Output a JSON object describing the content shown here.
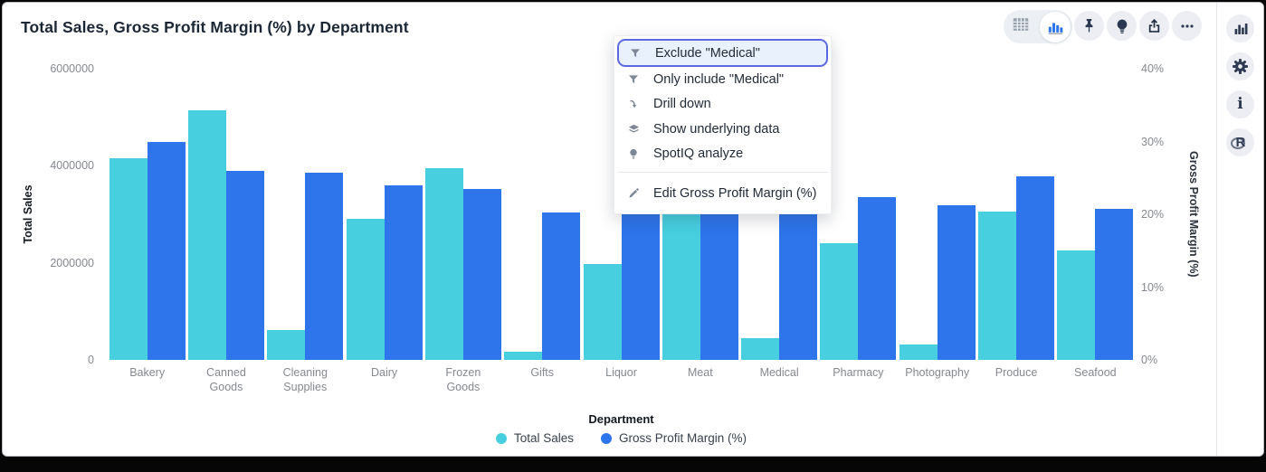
{
  "window": {
    "title": "Total Sales, Gross Profit Margin (%) by Department"
  },
  "toolbar": {
    "view_toggle": {
      "options": [
        "table-view",
        "chart-view"
      ],
      "selected": "chart-view"
    },
    "buttons": [
      "pin-icon",
      "spotiq-bulb-icon",
      "share-icon",
      "more-icon"
    ]
  },
  "rail": {
    "buttons": [
      "chart-panel-icon",
      "settings-gear-icon",
      "info-icon",
      "r-analysis-icon"
    ]
  },
  "icons": {
    "info_glyph": "i",
    "r_glyph": "R"
  },
  "context_menu": {
    "items": [
      {
        "icon": "filter-icon",
        "label": "Exclude \"Medical\"",
        "state": "focused"
      },
      {
        "icon": "filter-icon",
        "label": "Only include \"Medical\""
      },
      {
        "icon": "drill-down-icon",
        "label": "Drill down"
      },
      {
        "icon": "layers-icon",
        "label": "Show underlying data"
      },
      {
        "icon": "bulb-icon",
        "label": "SpotIQ analyze"
      },
      {
        "icon": "pencil-icon",
        "label": "Edit Gross Profit Margin (%)",
        "separator_before": true
      }
    ]
  },
  "chart_data": {
    "type": "bar",
    "title": "Total Sales, Gross Profit Margin (%) by Department",
    "categories": [
      "Bakery",
      "Canned Goods",
      "Cleaning Supplies",
      "Dairy",
      "Frozen Goods",
      "Gifts",
      "Liquor",
      "Meat",
      "Medical",
      "Pharmacy",
      "Photography",
      "Produce",
      "Seafood"
    ],
    "series": [
      {
        "name": "Total Sales",
        "axis": "left",
        "color": "#47CFDF",
        "values": [
          4150000,
          5150000,
          610000,
          2900000,
          3950000,
          160000,
          1980000,
          3400000,
          440000,
          2400000,
          320000,
          3060000,
          2250000
        ]
      },
      {
        "name": "Gross Profit Margin (%)",
        "axis": "right",
        "color": "#2E74EA",
        "values": [
          30,
          26,
          25.7,
          24,
          23.5,
          20.2,
          20.7,
          22,
          22,
          22.3,
          21.2,
          25.2,
          20.8
        ]
      }
    ],
    "xlabel": "Department",
    "left_axis": {
      "title": "Total Sales",
      "ticks": [
        "0",
        "2000000",
        "4000000",
        "6000000"
      ],
      "tick_values": [
        0,
        2000000,
        4000000,
        6000000
      ],
      "max": 6000000
    },
    "right_axis": {
      "title": "Gross Profit Margin (%)",
      "ticks": [
        "0%",
        "10%",
        "20%",
        "30%",
        "40%"
      ],
      "tick_values": [
        0,
        10,
        20,
        30,
        40
      ],
      "max": 40
    },
    "legend": {
      "position": "bottom",
      "entries": [
        "Total Sales",
        "Gross Profit Margin (%)"
      ]
    },
    "grid": false
  }
}
